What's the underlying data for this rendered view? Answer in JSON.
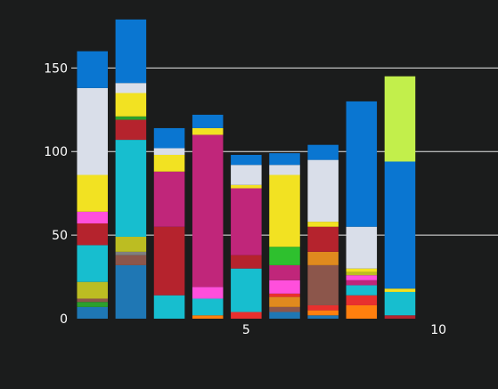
{
  "chart_data": {
    "type": "bar",
    "stacked": true,
    "title": "",
    "xlabel": "",
    "ylabel": "",
    "xlim": [
      0.45,
      11.55
    ],
    "ylim": [
      0,
      180
    ],
    "x_ticks": [
      5,
      10
    ],
    "y_ticks": [
      0,
      50,
      100,
      150
    ],
    "grid": "horizontal",
    "legend": "none",
    "background": "#1b1c1c",
    "grid_color": "#ffffff",
    "text_color": "#ffffff",
    "x": [
      1,
      2,
      3,
      4,
      5,
      6,
      7,
      8,
      9,
      10
    ],
    "bars": [
      {
        "x": 1,
        "segments": [
          {
            "value": 7,
            "color": "#1f77b4"
          },
          {
            "value": 3,
            "color": "#2ca02c"
          },
          {
            "value": 2,
            "color": "#8c564b"
          },
          {
            "value": 10,
            "color": "#bcbd22"
          },
          {
            "value": 22,
            "color": "#17becf"
          },
          {
            "value": 13,
            "color": "#b5232d"
          },
          {
            "value": 7,
            "color": "#ff4fdc"
          },
          {
            "value": 22,
            "color": "#f2e222"
          },
          {
            "value": 52,
            "color": "#d9dee9"
          },
          {
            "value": 22,
            "color": "#0a76d1"
          }
        ]
      },
      {
        "x": 2,
        "segments": [
          {
            "value": 32,
            "color": "#1f77b4"
          },
          {
            "value": 6,
            "color": "#8c564b"
          },
          {
            "value": 2,
            "color": "#7f7f7f"
          },
          {
            "value": 9,
            "color": "#bcbd22"
          },
          {
            "value": 58,
            "color": "#17becf"
          },
          {
            "value": 12,
            "color": "#b5232d"
          },
          {
            "value": 2,
            "color": "#2ca02c"
          },
          {
            "value": 14,
            "color": "#f2e222"
          },
          {
            "value": 6,
            "color": "#d9dee9"
          },
          {
            "value": 38,
            "color": "#0a76d1"
          }
        ]
      },
      {
        "x": 3,
        "segments": [
          {
            "value": 14,
            "color": "#17becf"
          },
          {
            "value": 41,
            "color": "#b5232d"
          },
          {
            "value": 33,
            "color": "#c0267a"
          },
          {
            "value": 10,
            "color": "#f2e222"
          },
          {
            "value": 4,
            "color": "#d9dee9"
          },
          {
            "value": 12,
            "color": "#0a76d1"
          }
        ]
      },
      {
        "x": 4,
        "segments": [
          {
            "value": 2,
            "color": "#ff7f0e"
          },
          {
            "value": 10,
            "color": "#17becf"
          },
          {
            "value": 7,
            "color": "#ff4fdc"
          },
          {
            "value": 91,
            "color": "#c0267a"
          },
          {
            "value": 4,
            "color": "#f2e222"
          },
          {
            "value": 8,
            "color": "#0a76d1"
          }
        ]
      },
      {
        "x": 5,
        "segments": [
          {
            "value": 4,
            "color": "#e8302e"
          },
          {
            "value": 26,
            "color": "#17becf"
          },
          {
            "value": 8,
            "color": "#b5232d"
          },
          {
            "value": 40,
            "color": "#c0267a"
          },
          {
            "value": 2,
            "color": "#f2e222"
          },
          {
            "value": 12,
            "color": "#d9dee9"
          },
          {
            "value": 6,
            "color": "#0a76d1"
          }
        ]
      },
      {
        "x": 6,
        "segments": [
          {
            "value": 4,
            "color": "#1f77b4"
          },
          {
            "value": 3,
            "color": "#8c564b"
          },
          {
            "value": 6,
            "color": "#e08a1e"
          },
          {
            "value": 2,
            "color": "#e8302e"
          },
          {
            "value": 8,
            "color": "#ff4fdc"
          },
          {
            "value": 9,
            "color": "#c0267a"
          },
          {
            "value": 11,
            "color": "#2ec02e"
          },
          {
            "value": 43,
            "color": "#f2e222"
          },
          {
            "value": 6,
            "color": "#d9dee9"
          },
          {
            "value": 7,
            "color": "#0a76d1"
          }
        ]
      },
      {
        "x": 7,
        "segments": [
          {
            "value": 2,
            "color": "#1f77b4"
          },
          {
            "value": 3,
            "color": "#ff7f0e"
          },
          {
            "value": 3,
            "color": "#e8302e"
          },
          {
            "value": 24,
            "color": "#8c564b"
          },
          {
            "value": 8,
            "color": "#e08a1e"
          },
          {
            "value": 15,
            "color": "#b5232d"
          },
          {
            "value": 3,
            "color": "#f2e222"
          },
          {
            "value": 37,
            "color": "#d9dee9"
          },
          {
            "value": 9,
            "color": "#0a76d1"
          }
        ]
      },
      {
        "x": 8,
        "segments": [
          {
            "value": 8,
            "color": "#ff7f0e"
          },
          {
            "value": 6,
            "color": "#e8302e"
          },
          {
            "value": 6,
            "color": "#17becf"
          },
          {
            "value": 3,
            "color": "#c0267a"
          },
          {
            "value": 3,
            "color": "#ff4fdc"
          },
          {
            "value": 2,
            "color": "#bcbd22"
          },
          {
            "value": 2,
            "color": "#f2e222"
          },
          {
            "value": 25,
            "color": "#d9dee9"
          },
          {
            "value": 75,
            "color": "#0a76d1"
          }
        ]
      },
      {
        "x": 9,
        "segments": [
          {
            "value": 2,
            "color": "#b5232d"
          },
          {
            "value": 14,
            "color": "#17becf"
          },
          {
            "value": 2,
            "color": "#f2e222"
          },
          {
            "value": 76,
            "color": "#0a76d1"
          },
          {
            "value": 51,
            "color": "#c2ef4b"
          }
        ]
      }
    ]
  }
}
